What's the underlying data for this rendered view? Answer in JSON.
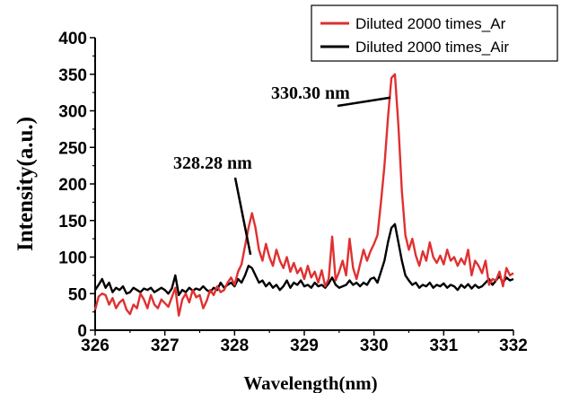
{
  "chart_data": {
    "type": "line",
    "xlabel": "Wavelength(nm)",
    "ylabel": "Intensity(a.u.)",
    "xlim": [
      326,
      332
    ],
    "ylim": [
      0,
      400
    ],
    "xticks": [
      326,
      327,
      328,
      329,
      330,
      331,
      332
    ],
    "yticks": [
      0,
      50,
      100,
      150,
      200,
      250,
      300,
      350,
      400
    ],
    "legend_position": "top-right",
    "grid": false,
    "series": [
      {
        "name": "Diluted 2000 times_Ar",
        "color": "#e03030",
        "points": [
          [
            326.0,
            28
          ],
          [
            326.05,
            46
          ],
          [
            326.1,
            50
          ],
          [
            326.15,
            48
          ],
          [
            326.2,
            35
          ],
          [
            326.25,
            44
          ],
          [
            326.3,
            30
          ],
          [
            326.35,
            38
          ],
          [
            326.4,
            42
          ],
          [
            326.45,
            28
          ],
          [
            326.5,
            22
          ],
          [
            326.55,
            35
          ],
          [
            326.6,
            30
          ],
          [
            326.65,
            50
          ],
          [
            326.7,
            42
          ],
          [
            326.75,
            30
          ],
          [
            326.8,
            48
          ],
          [
            326.85,
            35
          ],
          [
            326.9,
            30
          ],
          [
            326.95,
            42
          ],
          [
            327.0,
            37
          ],
          [
            327.05,
            32
          ],
          [
            327.1,
            45
          ],
          [
            327.15,
            58
          ],
          [
            327.2,
            20
          ],
          [
            327.25,
            42
          ],
          [
            327.3,
            50
          ],
          [
            327.35,
            38
          ],
          [
            327.4,
            55
          ],
          [
            327.45,
            45
          ],
          [
            327.5,
            48
          ],
          [
            327.55,
            30
          ],
          [
            327.6,
            40
          ],
          [
            327.65,
            55
          ],
          [
            327.7,
            48
          ],
          [
            327.75,
            60
          ],
          [
            327.8,
            52
          ],
          [
            327.85,
            55
          ],
          [
            327.9,
            65
          ],
          [
            327.95,
            72
          ],
          [
            328.0,
            62
          ],
          [
            328.05,
            80
          ],
          [
            328.1,
            90
          ],
          [
            328.15,
            115
          ],
          [
            328.2,
            140
          ],
          [
            328.25,
            160
          ],
          [
            328.3,
            140
          ],
          [
            328.35,
            110
          ],
          [
            328.4,
            95
          ],
          [
            328.45,
            118
          ],
          [
            328.5,
            100
          ],
          [
            328.55,
            88
          ],
          [
            328.6,
            110
          ],
          [
            328.65,
            95
          ],
          [
            328.7,
            85
          ],
          [
            328.75,
            100
          ],
          [
            328.8,
            80
          ],
          [
            328.85,
            92
          ],
          [
            328.9,
            78
          ],
          [
            328.95,
            85
          ],
          [
            329.0,
            70
          ],
          [
            329.05,
            88
          ],
          [
            329.1,
            72
          ],
          [
            329.15,
            80
          ],
          [
            329.2,
            65
          ],
          [
            329.25,
            82
          ],
          [
            329.3,
            60
          ],
          [
            329.35,
            70
          ],
          [
            329.4,
            128
          ],
          [
            329.45,
            68
          ],
          [
            329.5,
            80
          ],
          [
            329.55,
            95
          ],
          [
            329.6,
            75
          ],
          [
            329.65,
            125
          ],
          [
            329.7,
            85
          ],
          [
            329.75,
            70
          ],
          [
            329.8,
            90
          ],
          [
            329.85,
            110
          ],
          [
            329.9,
            95
          ],
          [
            329.95,
            108
          ],
          [
            330.0,
            118
          ],
          [
            330.05,
            130
          ],
          [
            330.1,
            175
          ],
          [
            330.15,
            225
          ],
          [
            330.2,
            290
          ],
          [
            330.25,
            345
          ],
          [
            330.3,
            350
          ],
          [
            330.35,
            280
          ],
          [
            330.4,
            190
          ],
          [
            330.45,
            130
          ],
          [
            330.5,
            110
          ],
          [
            330.55,
            125
          ],
          [
            330.6,
            102
          ],
          [
            330.65,
            88
          ],
          [
            330.7,
            108
          ],
          [
            330.75,
            95
          ],
          [
            330.8,
            120
          ],
          [
            330.85,
            100
          ],
          [
            330.9,
            92
          ],
          [
            330.95,
            102
          ],
          [
            331.0,
            90
          ],
          [
            331.05,
            110
          ],
          [
            331.1,
            95
          ],
          [
            331.15,
            100
          ],
          [
            331.2,
            88
          ],
          [
            331.25,
            98
          ],
          [
            331.3,
            90
          ],
          [
            331.35,
            110
          ],
          [
            331.4,
            75
          ],
          [
            331.45,
            95
          ],
          [
            331.5,
            88
          ],
          [
            331.55,
            78
          ],
          [
            331.6,
            95
          ],
          [
            331.65,
            62
          ],
          [
            331.7,
            70
          ],
          [
            331.75,
            68
          ],
          [
            331.8,
            80
          ],
          [
            331.85,
            60
          ],
          [
            331.9,
            85
          ],
          [
            331.95,
            75
          ],
          [
            332.0,
            78
          ]
        ]
      },
      {
        "name": "Diluted 2000 times_Air",
        "color": "#000000",
        "points": [
          [
            326.0,
            55
          ],
          [
            326.05,
            62
          ],
          [
            326.1,
            70
          ],
          [
            326.15,
            58
          ],
          [
            326.2,
            65
          ],
          [
            326.25,
            52
          ],
          [
            326.3,
            58
          ],
          [
            326.35,
            55
          ],
          [
            326.4,
            60
          ],
          [
            326.45,
            50
          ],
          [
            326.5,
            52
          ],
          [
            326.55,
            58
          ],
          [
            326.6,
            55
          ],
          [
            326.65,
            52
          ],
          [
            326.7,
            57
          ],
          [
            326.75,
            55
          ],
          [
            326.8,
            58
          ],
          [
            326.85,
            52
          ],
          [
            326.9,
            55
          ],
          [
            326.95,
            58
          ],
          [
            327.0,
            55
          ],
          [
            327.05,
            50
          ],
          [
            327.1,
            57
          ],
          [
            327.15,
            75
          ],
          [
            327.2,
            48
          ],
          [
            327.25,
            55
          ],
          [
            327.3,
            52
          ],
          [
            327.35,
            58
          ],
          [
            327.4,
            54
          ],
          [
            327.45,
            57
          ],
          [
            327.5,
            55
          ],
          [
            327.55,
            60
          ],
          [
            327.6,
            55
          ],
          [
            327.65,
            52
          ],
          [
            327.7,
            58
          ],
          [
            327.75,
            55
          ],
          [
            327.8,
            65
          ],
          [
            327.85,
            58
          ],
          [
            327.9,
            62
          ],
          [
            327.95,
            65
          ],
          [
            328.0,
            60
          ],
          [
            328.05,
            70
          ],
          [
            328.1,
            65
          ],
          [
            328.15,
            75
          ],
          [
            328.2,
            88
          ],
          [
            328.25,
            85
          ],
          [
            328.3,
            75
          ],
          [
            328.35,
            65
          ],
          [
            328.4,
            68
          ],
          [
            328.45,
            60
          ],
          [
            328.5,
            65
          ],
          [
            328.55,
            58
          ],
          [
            328.6,
            62
          ],
          [
            328.65,
            55
          ],
          [
            328.7,
            60
          ],
          [
            328.75,
            68
          ],
          [
            328.8,
            58
          ],
          [
            328.85,
            65
          ],
          [
            328.9,
            62
          ],
          [
            328.95,
            68
          ],
          [
            329.0,
            60
          ],
          [
            329.05,
            62
          ],
          [
            329.1,
            58
          ],
          [
            329.15,
            65
          ],
          [
            329.2,
            60
          ],
          [
            329.25,
            62
          ],
          [
            329.3,
            58
          ],
          [
            329.35,
            64
          ],
          [
            329.4,
            72
          ],
          [
            329.45,
            62
          ],
          [
            329.5,
            58
          ],
          [
            329.55,
            60
          ],
          [
            329.6,
            62
          ],
          [
            329.65,
            68
          ],
          [
            329.7,
            62
          ],
          [
            329.75,
            65
          ],
          [
            329.8,
            60
          ],
          [
            329.85,
            65
          ],
          [
            329.9,
            62
          ],
          [
            329.95,
            70
          ],
          [
            330.0,
            72
          ],
          [
            330.05,
            65
          ],
          [
            330.1,
            80
          ],
          [
            330.15,
            95
          ],
          [
            330.2,
            120
          ],
          [
            330.25,
            140
          ],
          [
            330.3,
            145
          ],
          [
            330.35,
            120
          ],
          [
            330.4,
            95
          ],
          [
            330.45,
            75
          ],
          [
            330.5,
            68
          ],
          [
            330.55,
            62
          ],
          [
            330.6,
            65
          ],
          [
            330.65,
            58
          ],
          [
            330.7,
            62
          ],
          [
            330.75,
            60
          ],
          [
            330.8,
            65
          ],
          [
            330.85,
            58
          ],
          [
            330.9,
            62
          ],
          [
            330.95,
            60
          ],
          [
            331.0,
            64
          ],
          [
            331.05,
            58
          ],
          [
            331.1,
            62
          ],
          [
            331.15,
            60
          ],
          [
            331.2,
            55
          ],
          [
            331.25,
            62
          ],
          [
            331.3,
            58
          ],
          [
            331.35,
            63
          ],
          [
            331.4,
            57
          ],
          [
            331.45,
            62
          ],
          [
            331.5,
            58
          ],
          [
            331.55,
            60
          ],
          [
            331.6,
            65
          ],
          [
            331.65,
            70
          ],
          [
            331.7,
            62
          ],
          [
            331.75,
            68
          ],
          [
            331.8,
            74
          ],
          [
            331.85,
            65
          ],
          [
            331.9,
            72
          ],
          [
            331.95,
            68
          ],
          [
            332.0,
            70
          ]
        ]
      }
    ],
    "annotations": [
      {
        "text": "330.30 nm",
        "x": 330.3
      },
      {
        "text": "328.28 nm",
        "x": 328.28
      }
    ]
  }
}
